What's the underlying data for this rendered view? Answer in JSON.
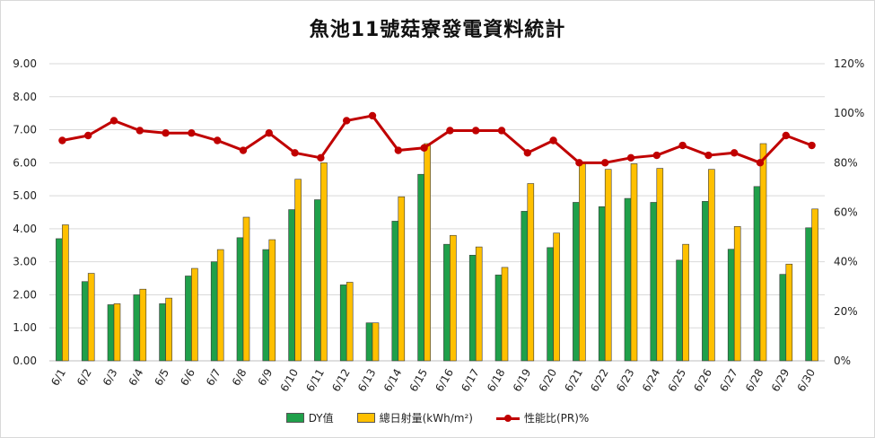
{
  "chart_data": {
    "type": "bar",
    "title": "魚池11號菇寮發電資料統計",
    "categories": [
      "6/1",
      "6/2",
      "6/3",
      "6/4",
      "6/5",
      "6/6",
      "6/7",
      "6/8",
      "6/9",
      "6/10",
      "6/11",
      "6/12",
      "6/13",
      "6/14",
      "6/15",
      "6/16",
      "6/17",
      "6/18",
      "6/19",
      "6/20",
      "6/21",
      "6/22",
      "6/23",
      "6/24",
      "6/25",
      "6/26",
      "6/27",
      "6/28",
      "6/29",
      "6/30"
    ],
    "series": [
      {
        "name": "DY值",
        "type": "bar",
        "axis": "left",
        "color": "#1fa04a",
        "values": [
          3.7,
          2.4,
          1.7,
          2.0,
          1.73,
          2.57,
          3.0,
          3.73,
          3.37,
          4.58,
          4.88,
          2.3,
          1.15,
          4.23,
          5.65,
          3.53,
          3.2,
          2.6,
          4.53,
          3.43,
          4.8,
          4.67,
          4.92,
          4.8,
          3.05,
          4.83,
          3.38,
          5.28,
          2.62,
          4.03
        ]
      },
      {
        "name": "總日射量(kWh/m²)",
        "type": "bar",
        "axis": "left",
        "color": "#ffc000",
        "values": [
          4.12,
          2.65,
          1.73,
          2.17,
          1.9,
          2.8,
          3.37,
          4.35,
          3.67,
          5.5,
          6.0,
          2.38,
          1.15,
          4.97,
          6.58,
          3.8,
          3.45,
          2.83,
          5.37,
          3.87,
          6.0,
          5.8,
          5.97,
          5.83,
          3.53,
          5.8,
          4.07,
          6.58,
          2.93,
          4.6
        ]
      },
      {
        "name": "性能比(PR)%",
        "type": "line",
        "axis": "right",
        "color": "#c00000",
        "values": [
          89,
          91,
          97,
          93,
          92,
          92,
          89,
          85,
          92,
          84,
          82,
          97,
          99,
          85,
          86,
          93,
          93,
          93,
          84,
          89,
          80,
          80,
          82,
          83,
          87,
          83,
          84,
          80,
          91,
          87
        ]
      }
    ],
    "yaxis_left": {
      "ylim": [
        0,
        9
      ],
      "ticks": [
        "0.00",
        "1.00",
        "2.00",
        "3.00",
        "4.00",
        "5.00",
        "6.00",
        "7.00",
        "8.00",
        "9.00"
      ]
    },
    "yaxis_right": {
      "ylim": [
        0,
        120
      ],
      "ticks": [
        "0%",
        "20%",
        "40%",
        "60%",
        "80%",
        "100%",
        "120%"
      ]
    },
    "grid": true,
    "legend_position": "bottom"
  }
}
